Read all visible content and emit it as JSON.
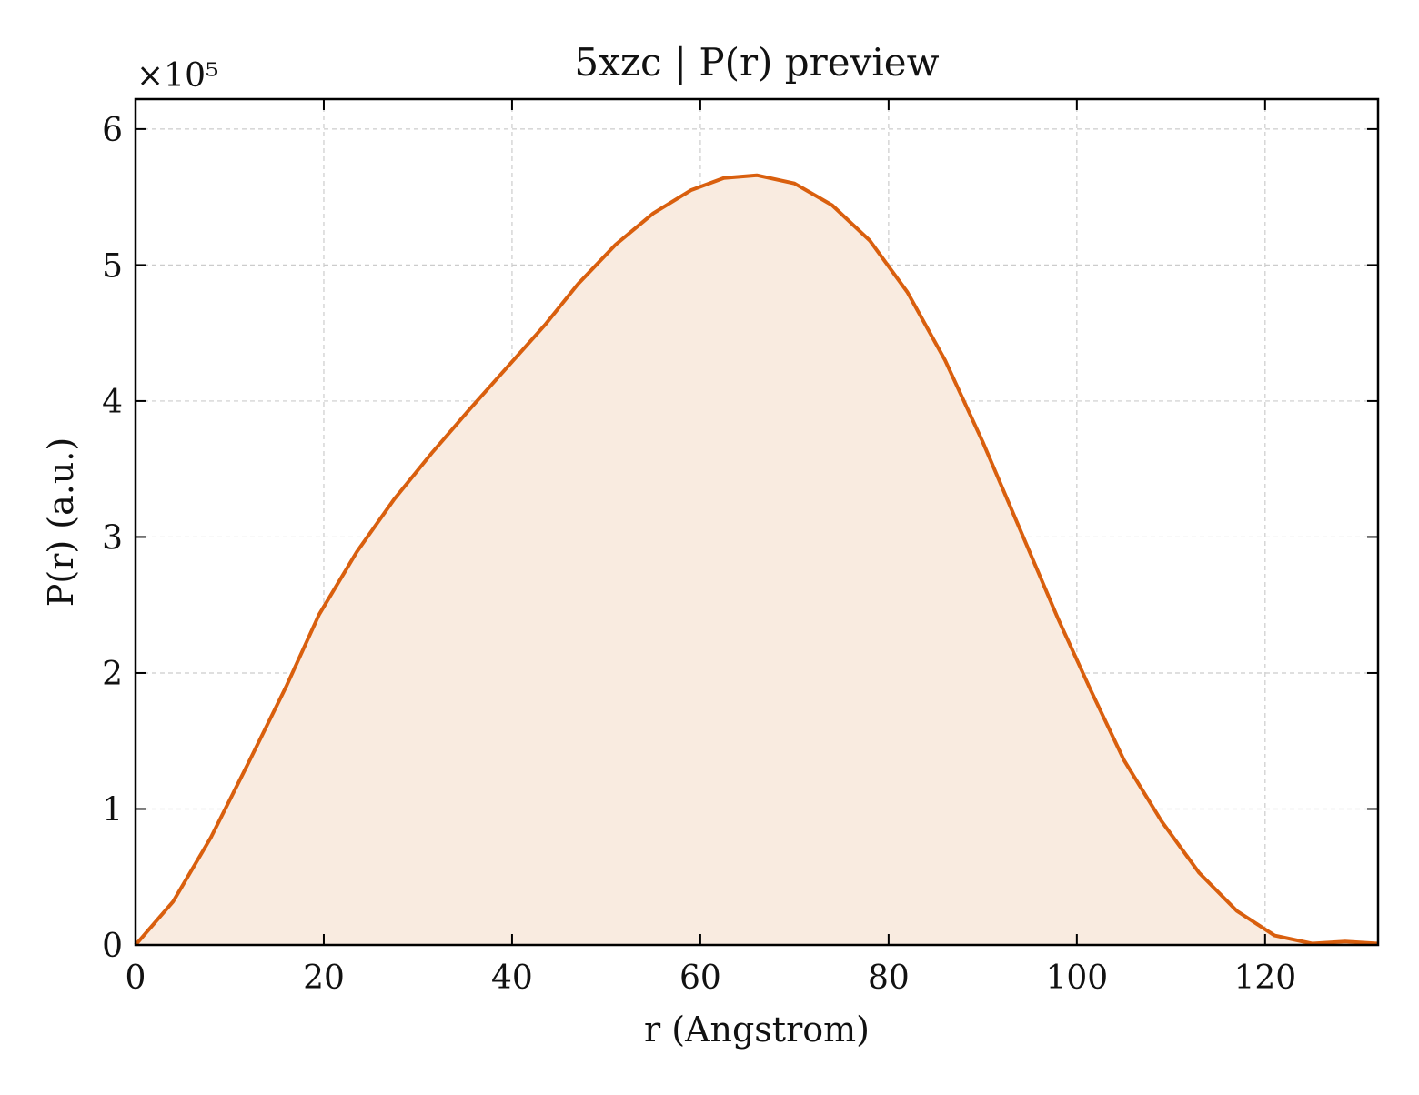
{
  "chart_data": {
    "type": "area",
    "title": "5xzc | P(r) preview",
    "xlabel": "r (Angstrom)",
    "ylabel": "P(r) (a.u.)",
    "y_multiplier_label": "×10⁵",
    "y_scale_factor": 100000,
    "xlim": [
      0,
      132
    ],
    "ylim": [
      0,
      622000
    ],
    "x_ticks": [
      0,
      20,
      40,
      60,
      80,
      100,
      120
    ],
    "y_ticks": [
      0,
      100000,
      200000,
      300000,
      400000,
      500000,
      600000
    ],
    "y_tick_labels": [
      "0",
      "1",
      "2",
      "3",
      "4",
      "5",
      "6"
    ],
    "grid": true,
    "line_color": "#d95f0e",
    "fill_color": "#f9ebe0",
    "series": [
      {
        "x": [
          0,
          4,
          8,
          12,
          16,
          19.5,
          23.5,
          27.5,
          31.5,
          35.5,
          39.5,
          43.5,
          47,
          51,
          55,
          59,
          62.5,
          66,
          70,
          74,
          78,
          82,
          86,
          90,
          94,
          98,
          101.5,
          105,
          109,
          113,
          117,
          121,
          125,
          128.5,
          132
        ],
        "y": [
          0,
          32000,
          79000,
          134000,
          190000,
          243000,
          289000,
          328000,
          362000,
          394000,
          425000,
          456000,
          486000,
          515000,
          538000,
          555000,
          564000,
          566000,
          560000,
          544000,
          518000,
          480000,
          430000,
          370000,
          305000,
          240000,
          187000,
          136000,
          91000,
          53000,
          25000,
          7000,
          1000,
          2500,
          1000
        ]
      }
    ]
  }
}
